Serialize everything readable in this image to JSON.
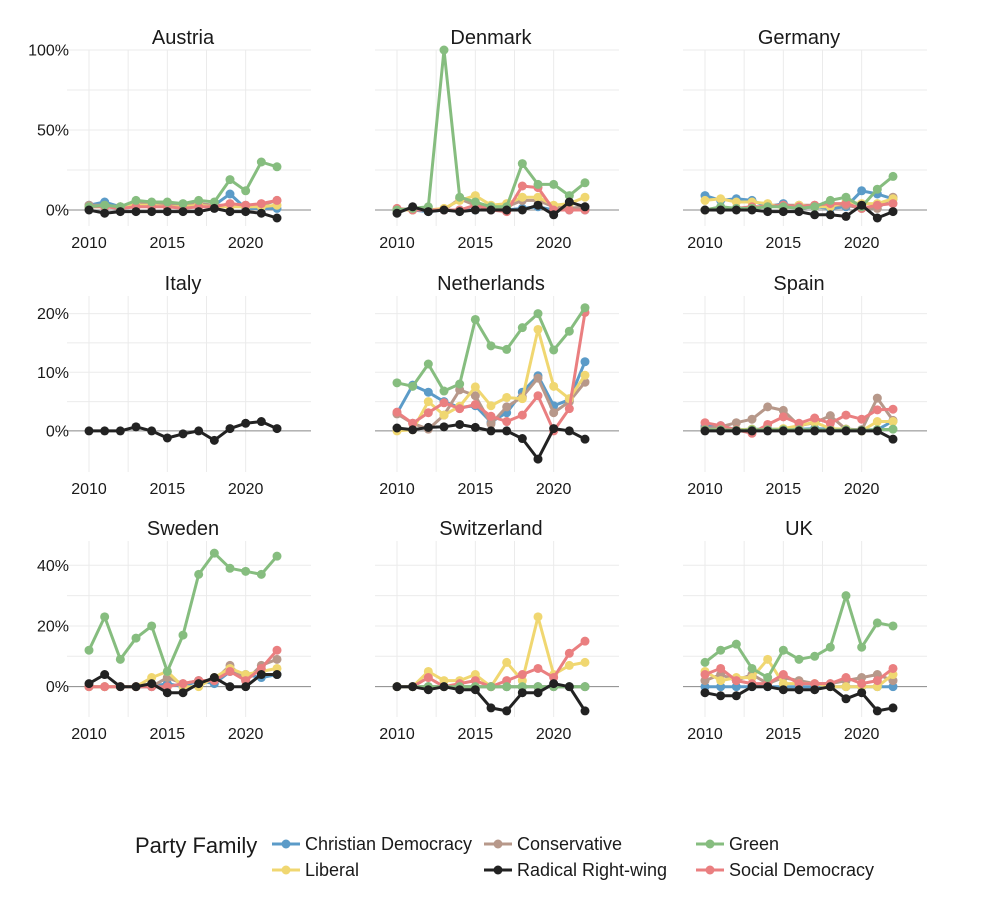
{
  "chart_data": {
    "type": "line",
    "legend": {
      "title": "Party Family",
      "placement": "bottom"
    },
    "families": [
      {
        "key": "christian_democracy",
        "name": "Christian Democracy",
        "color": "#5b9bc8"
      },
      {
        "key": "conservative",
        "name": "Conservative",
        "color": "#b7988a"
      },
      {
        "key": "green",
        "name": "Green",
        "color": "#86bd7f"
      },
      {
        "key": "liberal",
        "name": "Liberal",
        "color": "#f0d771"
      },
      {
        "key": "radical_right",
        "name": "Radical Right-wing",
        "color": "#222222"
      },
      {
        "key": "social_democracy",
        "name": "Social Democracy",
        "color": "#ea7f80"
      }
    ],
    "draw_order": [
      "christian_democracy",
      "conservative",
      "liberal",
      "social_democracy",
      "green",
      "radical_right"
    ],
    "x": [
      2010,
      2011,
      2012,
      2013,
      2014,
      2015,
      2016,
      2017,
      2018,
      2019,
      2020,
      2021,
      2022
    ],
    "x_ticks": [
      2010,
      2015,
      2020
    ],
    "xlim": [
      2010,
      2022
    ],
    "grid": true,
    "rows": [
      {
        "ylim": [
          -10,
          100
        ],
        "y_ticks": [
          0,
          50,
          100
        ],
        "y_tick_labels": [
          "0%",
          "50%",
          "100%"
        ]
      },
      {
        "ylim": [
          -7,
          23
        ],
        "y_ticks": [
          0,
          10,
          20
        ],
        "y_tick_labels": [
          "0%",
          "10%",
          "20%"
        ]
      },
      {
        "ylim": [
          -10,
          48
        ],
        "y_ticks": [
          0,
          20,
          40
        ],
        "y_tick_labels": [
          "0%",
          "20%",
          "40%"
        ]
      }
    ],
    "panels": [
      {
        "title": "Austria",
        "row": 0,
        "col": 0,
        "series": {
          "christian_democracy": [
            3,
            5,
            2,
            3,
            3,
            3,
            3,
            3,
            3,
            10,
            1,
            1,
            1
          ],
          "conservative": [
            3,
            3,
            2,
            4,
            4,
            3,
            3,
            4,
            3,
            3,
            3,
            3,
            6
          ],
          "green": [
            2,
            3,
            2,
            6,
            5,
            5,
            4,
            6,
            5,
            19,
            12,
            30,
            27
          ],
          "liberal": [
            2,
            2,
            2,
            3,
            3,
            2,
            2,
            3,
            2,
            2,
            2,
            2,
            3
          ],
          "radical_right": [
            0,
            -2,
            -1,
            -1,
            -1,
            -1,
            -1,
            -1,
            1,
            -1,
            -1,
            -2,
            -5
          ],
          "social_democracy": [
            2,
            2,
            1,
            2,
            2,
            2,
            1,
            2,
            2,
            4,
            3,
            4,
            6
          ]
        }
      },
      {
        "title": "Denmark",
        "row": 0,
        "col": 1,
        "series": {
          "christian_democracy": [
            0,
            0,
            -1,
            0,
            0,
            0,
            0,
            0,
            1,
            2,
            0,
            0,
            0
          ],
          "conservative": [
            0,
            0,
            0,
            0,
            7,
            3,
            1,
            2,
            6,
            6,
            2,
            1,
            2
          ],
          "green": [
            0,
            1,
            2,
            100,
            8,
            5,
            2,
            2,
            29,
            16,
            16,
            9,
            17
          ],
          "liberal": [
            0,
            0,
            0,
            1,
            6,
            9,
            3,
            4,
            8,
            8,
            3,
            4,
            8
          ],
          "radical_right": [
            -2,
            2,
            -1,
            0,
            -1,
            0,
            0,
            0,
            0,
            3,
            -3,
            5,
            2
          ],
          "social_democracy": [
            1,
            0,
            0,
            0,
            0,
            3,
            0,
            -1,
            15,
            14,
            0,
            0,
            0
          ]
        }
      },
      {
        "title": "Germany",
        "row": 0,
        "col": 2,
        "series": {
          "christian_democracy": [
            9,
            6,
            7,
            6,
            2,
            4,
            1,
            2,
            1,
            2,
            12,
            10,
            7
          ],
          "conservative": [
            0,
            1,
            1,
            1,
            3,
            3,
            3,
            3,
            3,
            3,
            1,
            1,
            8
          ],
          "green": [
            0,
            2,
            1,
            1,
            2,
            2,
            1,
            2,
            6,
            8,
            2,
            13,
            21
          ],
          "liberal": [
            6,
            7,
            5,
            5,
            4,
            1,
            3,
            2,
            2,
            5,
            4,
            4,
            7
          ],
          "radical_right": [
            0,
            0,
            0,
            0,
            -1,
            -1,
            -1,
            -3,
            -3,
            -4,
            3,
            -5,
            -1
          ],
          "social_democracy": [
            0,
            1,
            1,
            2,
            2,
            3,
            2,
            3,
            4,
            4,
            1,
            3,
            4
          ]
        }
      },
      {
        "title": "Italy",
        "row": 1,
        "col": 0,
        "series": {
          "radical_right": [
            0,
            0,
            0,
            0.7,
            0,
            -1.2,
            -0.5,
            0,
            -1.6,
            0.4,
            1.3,
            1.6,
            0.4
          ]
        }
      },
      {
        "title": "Netherlands",
        "row": 1,
        "col": 1,
        "series": {
          "christian_democracy": [
            3,
            7.8,
            6.6,
            5,
            4,
            4.3,
            1.5,
            3.1,
            6.6,
            9.4,
            4.3,
            5.3,
            11.8
          ],
          "conservative": [
            2.9,
            1.3,
            0.3,
            2.7,
            7,
            6,
            1.2,
            4.1,
            5.8,
            9,
            3.1,
            5,
            8.3
          ],
          "green": [
            8.2,
            7.6,
            11.4,
            6.8,
            8,
            19,
            14.5,
            13.9,
            17.6,
            20,
            13.8,
            17,
            21
          ],
          "liberal": [
            0,
            0.2,
            5,
            2.7,
            4.2,
            7.5,
            4.3,
            5.7,
            5.5,
            17.3,
            7.6,
            5.5,
            9.5
          ],
          "radical_right": [
            0.5,
            0.2,
            0.6,
            0.7,
            1.1,
            0.6,
            0,
            0,
            -1.3,
            -4.8,
            0.4,
            0,
            -1.4
          ],
          "social_democracy": [
            3.2,
            1.3,
            3.1,
            4.8,
            3.8,
            4.5,
            2.5,
            1.6,
            2.7,
            6,
            0,
            3.8,
            20.2
          ]
        }
      },
      {
        "title": "Spain",
        "row": 1,
        "col": 2,
        "series": {
          "christian_democracy": [
            0.8,
            0.9,
            0.2,
            0.3,
            0.3,
            0.3,
            0.3,
            0.4,
            0.3,
            0.3,
            0.2,
            0.2,
            1.7
          ],
          "conservative": [
            0.4,
            0.7,
            1.4,
            2,
            4.1,
            3.5,
            0.9,
            1.4,
            2.6,
            0.3,
            0.2,
            5.6,
            1.8
          ],
          "green": [
            0.2,
            0.2,
            0.1,
            0.2,
            0.2,
            0.2,
            0.2,
            0.2,
            0.1,
            0.2,
            0.1,
            0.2,
            0.3
          ],
          "liberal": [
            0.1,
            0.3,
            0.2,
            0.3,
            0.2,
            0.4,
            0.9,
            1.5,
            0.4,
            0.3,
            0,
            1.6,
            1.6
          ],
          "radical_right": [
            0,
            0,
            0,
            0,
            0,
            0,
            0,
            0,
            0,
            0,
            0,
            0,
            -1.4
          ],
          "social_democracy": [
            1.4,
            0.9,
            0.2,
            -0.4,
            1.1,
            2.4,
            1.3,
            2.2,
            1.3,
            2.7,
            2,
            3.6,
            3.7
          ]
        }
      },
      {
        "title": "Sweden",
        "row": 2,
        "col": 0,
        "series": {
          "christian_democracy": [
            0,
            0,
            0,
            0,
            0,
            1,
            0,
            2,
            1,
            5,
            4,
            3,
            4
          ],
          "conservative": [
            0,
            0,
            0,
            0,
            0,
            3,
            1,
            2,
            2,
            7,
            2,
            7,
            9
          ],
          "green": [
            12,
            23,
            9,
            16,
            20,
            5,
            17,
            37,
            44,
            39,
            38,
            37,
            43
          ],
          "liberal": [
            0,
            0,
            0,
            0,
            3,
            5,
            0,
            0,
            3,
            6,
            4,
            5,
            6
          ],
          "radical_right": [
            1,
            4,
            0,
            0,
            1,
            -2,
            -2,
            1,
            3,
            0,
            0,
            4,
            4
          ],
          "social_democracy": [
            0,
            0,
            0,
            0,
            0,
            0,
            1,
            2,
            2,
            5,
            2,
            6,
            12
          ]
        }
      },
      {
        "title": "Switzerland",
        "row": 2,
        "col": 1,
        "series": {
          "christian_democracy": [
            0,
            0,
            0,
            0,
            0,
            0,
            0,
            0,
            0,
            0,
            0,
            0,
            0
          ],
          "conservative": [
            0,
            0,
            0,
            0,
            0,
            0,
            0,
            0,
            0,
            0,
            0,
            0,
            0
          ],
          "green": [
            0,
            0,
            0,
            0,
            0,
            0,
            0,
            0,
            0,
            0,
            0,
            0,
            0
          ],
          "liberal": [
            0,
            0,
            5,
            2,
            2,
            4,
            0,
            8,
            2,
            23,
            4,
            7,
            8
          ],
          "radical_right": [
            0,
            0,
            -1,
            0,
            -1,
            -1,
            -7,
            -8,
            -2,
            -2,
            1,
            0,
            -8
          ],
          "social_democracy": [
            0,
            0,
            3,
            0,
            1,
            2,
            0,
            2,
            4,
            6,
            3,
            11,
            15
          ]
        }
      },
      {
        "title": "UK",
        "row": 2,
        "col": 2,
        "series": {
          "christian_democracy": [
            0,
            0,
            0,
            0,
            0,
            0,
            0,
            0,
            0,
            0,
            0,
            0,
            0
          ],
          "conservative": [
            2,
            4,
            2,
            4,
            1,
            3,
            2,
            1,
            1,
            2,
            3,
            4,
            2
          ],
          "green": [
            8,
            12,
            14,
            6,
            3,
            12,
            9,
            10,
            13,
            30,
            13,
            21,
            20
          ],
          "liberal": [
            5,
            2,
            3,
            3,
            9,
            1,
            1,
            1,
            0,
            0,
            0,
            0,
            4
          ],
          "radical_right": [
            -2,
            -3,
            -3,
            0,
            0,
            -1,
            -1,
            -1,
            0,
            -4,
            -2,
            -8,
            -7
          ],
          "social_democracy": [
            4,
            6,
            2,
            1,
            1,
            4,
            1,
            1,
            1,
            3,
            1,
            2,
            6
          ]
        }
      }
    ]
  }
}
